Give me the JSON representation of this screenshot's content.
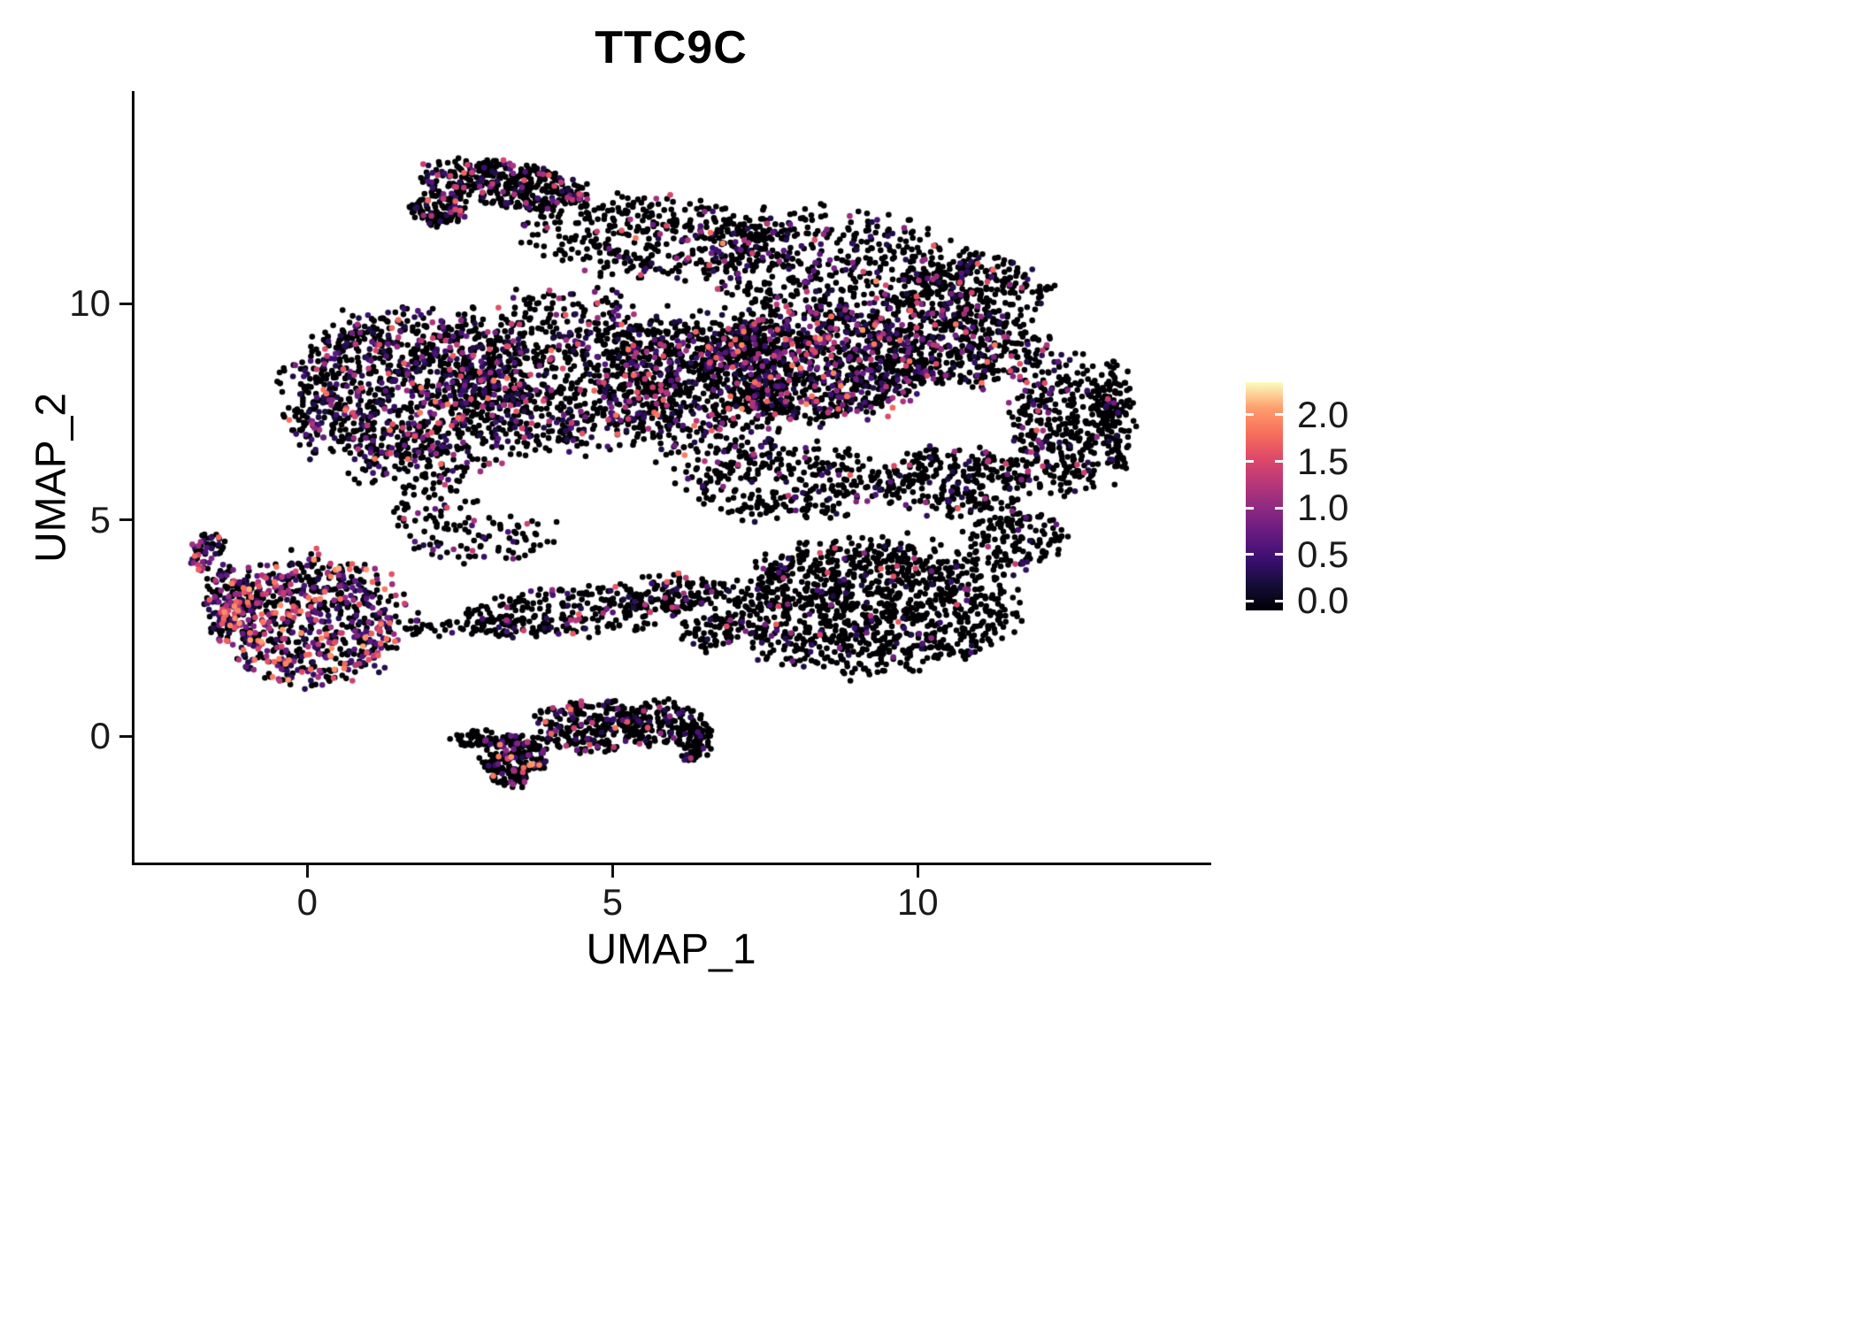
{
  "figure": {
    "background": "#ffffff"
  },
  "chart_data": {
    "type": "scatter",
    "title": "TTC9C",
    "xlabel": "UMAP_1",
    "ylabel": "UMAP_2",
    "xlim": [
      -2.83,
      14.75
    ],
    "ylim": [
      -2.92,
      14.87
    ],
    "grid": false,
    "theme": "classic",
    "x_ticks": [
      {
        "value": 0,
        "label": "0"
      },
      {
        "value": 5,
        "label": "5"
      },
      {
        "value": 10,
        "label": "10"
      }
    ],
    "y_ticks": [
      {
        "value": 0,
        "label": "0"
      },
      {
        "value": 5,
        "label": "5"
      },
      {
        "value": 10,
        "label": "10"
      }
    ],
    "legend": {
      "position": "right",
      "colormap": [
        "#000004",
        "#140e36",
        "#3b0f70",
        "#641a80",
        "#8c2981",
        "#b73779",
        "#de4968",
        "#f7705c",
        "#fe9f6d",
        "#fcfdbf"
      ],
      "domain": [
        0,
        2.35
      ],
      "bar_vmin": -0.1,
      "bar_vmax": 2.35,
      "ticks": [
        {
          "value": 2.0,
          "label": "2.0"
        },
        {
          "value": 1.5,
          "label": "1.5"
        },
        {
          "value": 1.0,
          "label": "1.0"
        },
        {
          "value": 0.5,
          "label": "0.5"
        },
        {
          "value": 0.0,
          "label": "0.0"
        }
      ]
    },
    "style": {
      "point_radius": 3.3,
      "point_color_zero": "#000004"
    },
    "seed": 42,
    "n_points_total": 10340,
    "clusters": [
      {
        "name": "top-arc",
        "cx": 3.3,
        "cy": 12.75,
        "rx": 1.35,
        "ry": 0.5,
        "rot": -12,
        "n": 380,
        "p": 0.22,
        "pow": 2.2,
        "vmax": 1.9
      },
      {
        "name": "top-arc-tip",
        "cx": 2.15,
        "cy": 12.2,
        "rx": 0.45,
        "ry": 0.4,
        "rot": 0,
        "n": 120,
        "p": 0.2,
        "pow": 2.2,
        "vmax": 1.8
      },
      {
        "name": "upper-mid",
        "cx": 5.7,
        "cy": 11.5,
        "rx": 2.1,
        "ry": 0.95,
        "rot": -5,
        "n": 380,
        "p": 0.15,
        "pow": 2.2,
        "vmax": 1.9
      },
      {
        "name": "upper-right",
        "cx": 8.6,
        "cy": 10.9,
        "rx": 2.2,
        "ry": 1.2,
        "rot": -8,
        "n": 520,
        "p": 0.18,
        "pow": 2.2,
        "vmax": 2.0
      },
      {
        "name": "right-top-bump",
        "cx": 10.9,
        "cy": 10.3,
        "rx": 1.2,
        "ry": 0.85,
        "rot": 0,
        "n": 260,
        "p": 0.15,
        "pow": 2.2,
        "vmax": 1.8
      },
      {
        "name": "left-lobe",
        "cx": 1.6,
        "cy": 7.9,
        "rx": 1.9,
        "ry": 1.95,
        "rot": 10,
        "n": 1150,
        "p": 0.3,
        "pow": 2.4,
        "vmax": 1.9
      },
      {
        "name": "center-left",
        "cx": 4.2,
        "cy": 8.4,
        "rx": 1.9,
        "ry": 1.8,
        "rot": 0,
        "n": 800,
        "p": 0.22,
        "pow": 2.3,
        "vmax": 1.9
      },
      {
        "name": "center",
        "cx": 6.4,
        "cy": 8.1,
        "rx": 1.6,
        "ry": 1.7,
        "rot": 0,
        "n": 700,
        "p": 0.22,
        "pow": 2.3,
        "vmax": 1.9
      },
      {
        "name": "right-center-band",
        "cx": 8.3,
        "cy": 8.6,
        "rx": 1.8,
        "ry": 1.25,
        "rot": -5,
        "n": 950,
        "p": 0.32,
        "pow": 2.2,
        "vmax": 2.05
      },
      {
        "name": "right-lobe-top",
        "cx": 10.7,
        "cy": 9.0,
        "rx": 1.5,
        "ry": 0.85,
        "rot": -10,
        "n": 420,
        "p": 0.2,
        "pow": 2.3,
        "vmax": 1.9
      },
      {
        "name": "right-lobe-right",
        "cx": 12.4,
        "cy": 7.2,
        "rx": 0.85,
        "ry": 1.5,
        "rot": 0,
        "n": 360,
        "p": 0.12,
        "pow": 2.4,
        "vmax": 1.8
      },
      {
        "name": "right-lobe-bottom",
        "cx": 10.6,
        "cy": 5.9,
        "rx": 1.3,
        "ry": 0.75,
        "rot": 5,
        "n": 280,
        "p": 0.12,
        "pow": 2.4,
        "vmax": 1.8
      },
      {
        "name": "right-edge-arc",
        "cx": 13.25,
        "cy": 7.3,
        "rx": 0.3,
        "ry": 1.3,
        "rot": 0,
        "n": 130,
        "p": 0.08,
        "pow": 2.4,
        "vmax": 1.6
      },
      {
        "name": "mid-low-sparse",
        "cx": 7.8,
        "cy": 5.9,
        "rx": 1.7,
        "ry": 0.85,
        "rot": 0,
        "n": 300,
        "p": 0.12,
        "pow": 2.4,
        "vmax": 1.8
      },
      {
        "name": "lower-right-blob",
        "cx": 9.2,
        "cy": 3.0,
        "rx": 2.3,
        "ry": 1.5,
        "rot": 0,
        "n": 1150,
        "p": 0.07,
        "pow": 2.5,
        "vmax": 1.7
      },
      {
        "name": "lower-right-tail",
        "cx": 11.6,
        "cy": 4.6,
        "rx": 0.8,
        "ry": 0.7,
        "rot": 0,
        "n": 140,
        "p": 0.08,
        "pow": 2.4,
        "vmax": 1.6
      },
      {
        "name": "mid-arm",
        "cx": 4.4,
        "cy": 2.9,
        "rx": 1.7,
        "ry": 0.55,
        "rot": 5,
        "n": 230,
        "p": 0.15,
        "pow": 2.2,
        "vmax": 1.8
      },
      {
        "name": "mid-arm-right",
        "cx": 6.0,
        "cy": 3.3,
        "rx": 0.8,
        "ry": 0.45,
        "rot": 0,
        "n": 120,
        "p": 0.15,
        "pow": 2.2,
        "vmax": 1.8
      },
      {
        "name": "left-bridge",
        "cx": 2.2,
        "cy": 5.0,
        "rx": 0.7,
        "ry": 1.0,
        "rot": 20,
        "n": 90,
        "p": 0.15,
        "pow": 2.2,
        "vmax": 1.7
      },
      {
        "name": "arm-thin",
        "cx": 2.9,
        "cy": 2.5,
        "rx": 1.4,
        "ry": 0.22,
        "rot": 0,
        "n": 85,
        "p": 0.1,
        "pow": 2.2,
        "vmax": 1.6
      },
      {
        "name": "lower-left-cluster",
        "cx": 0.1,
        "cy": 2.7,
        "rx": 1.5,
        "ry": 1.45,
        "rot": 0,
        "n": 720,
        "p": 0.5,
        "pow": 1.6,
        "vmax": 2.15
      },
      {
        "name": "lower-left-edge",
        "cx": -1.25,
        "cy": 3.1,
        "rx": 0.45,
        "ry": 0.85,
        "rot": 0,
        "n": 150,
        "p": 0.42,
        "pow": 1.7,
        "vmax": 2.0
      },
      {
        "name": "lower-left-tail",
        "cx": -1.65,
        "cy": 4.3,
        "rx": 0.25,
        "ry": 0.45,
        "rot": -20,
        "n": 55,
        "p": 0.35,
        "pow": 1.8,
        "vmax": 1.9
      },
      {
        "name": "bottom-main",
        "cx": 4.7,
        "cy": 0.25,
        "rx": 0.95,
        "ry": 0.6,
        "rot": 0,
        "n": 260,
        "p": 0.18,
        "pow": 2.0,
        "vmax": 1.9
      },
      {
        "name": "bottom-dense",
        "cx": 3.4,
        "cy": -0.55,
        "rx": 0.5,
        "ry": 0.6,
        "rot": -15,
        "n": 230,
        "p": 0.22,
        "pow": 1.8,
        "vmax": 2.1
      },
      {
        "name": "bottom-right",
        "cx": 5.8,
        "cy": 0.3,
        "rx": 0.65,
        "ry": 0.5,
        "rot": 0,
        "n": 130,
        "p": 0.12,
        "pow": 2.2,
        "vmax": 1.7
      },
      {
        "name": "bottom-right-tip",
        "cx": 6.35,
        "cy": -0.1,
        "rx": 0.3,
        "ry": 0.45,
        "rot": 0,
        "n": 80,
        "p": 0.1,
        "pow": 2.2,
        "vmax": 1.6
      },
      {
        "name": "bottom-left-chain",
        "cx": 2.75,
        "cy": -0.05,
        "rx": 0.35,
        "ry": 0.2,
        "rot": 0,
        "n": 45,
        "p": 0.1,
        "pow": 2.2,
        "vmax": 1.5
      },
      {
        "name": "sparse-left-mid",
        "cx": 3.4,
        "cy": 4.6,
        "rx": 0.8,
        "ry": 0.5,
        "rot": 0,
        "n": 45,
        "p": 0.1,
        "pow": 2.2,
        "vmax": 1.6
      },
      {
        "name": "arm-bridge",
        "cx": 6.6,
        "cy": 2.4,
        "rx": 0.5,
        "ry": 0.4,
        "rot": 0,
        "n": 60,
        "p": 0.1,
        "pow": 2.2,
        "vmax": 1.6
      }
    ]
  }
}
